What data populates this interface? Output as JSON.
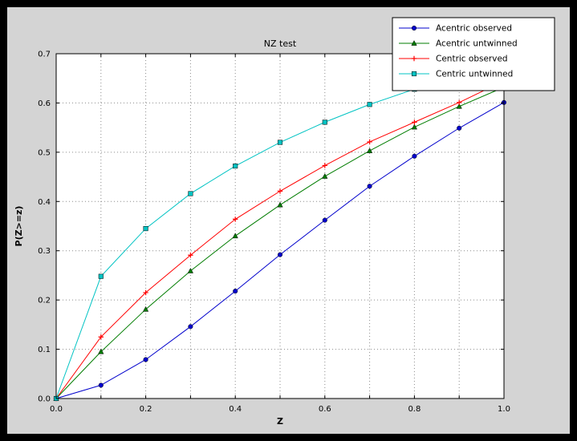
{
  "window": {
    "outer_background": "#000000",
    "figure_background": "#d4d4d4",
    "plot_background": "#ffffff",
    "grid_color": "#8c8c8c",
    "axis_color": "#000000"
  },
  "chart_data": {
    "type": "line",
    "title": "NZ test",
    "xlabel": "Z",
    "ylabel": "P(Z>=z)",
    "xlim": [
      0.0,
      1.0
    ],
    "ylim": [
      0.0,
      0.7
    ],
    "x_tick_labels": [
      "0.0",
      "0.2",
      "0.4",
      "0.6",
      "0.8",
      "1.0"
    ],
    "y_tick_labels": [
      "0.0",
      "0.1",
      "0.2",
      "0.3",
      "0.4",
      "0.5",
      "0.6",
      "0.7"
    ],
    "grid": true,
    "grid_spacing": 0.1,
    "legend_position": "top-right",
    "x": [
      0.0,
      0.1,
      0.2,
      0.3,
      0.4,
      0.5,
      0.6,
      0.7,
      0.8,
      0.9,
      1.0
    ],
    "series": [
      {
        "name": "Acentric observed",
        "color": "#0000cc",
        "marker": "circle",
        "values": [
          0.0,
          0.027,
          0.079,
          0.146,
          0.218,
          0.292,
          0.362,
          0.431,
          0.492,
          0.549,
          0.601
        ]
      },
      {
        "name": "Acentric untwinned",
        "color": "#007d00",
        "marker": "triangle",
        "values": [
          0.0,
          0.095,
          0.181,
          0.259,
          0.33,
          0.393,
          0.451,
          0.503,
          0.551,
          0.593,
          0.632
        ]
      },
      {
        "name": "Centric observed",
        "color": "#ff0000",
        "marker": "plus",
        "values": [
          0.0,
          0.125,
          0.215,
          0.291,
          0.364,
          0.421,
          0.473,
          0.521,
          0.561,
          0.601,
          0.645
        ]
      },
      {
        "name": "Centric untwinned",
        "color": "#00c3c3",
        "marker": "square",
        "values": [
          0.0,
          0.248,
          0.345,
          0.416,
          0.472,
          0.52,
          0.561,
          0.597,
          0.628,
          0.657,
          0.683
        ]
      }
    ]
  }
}
